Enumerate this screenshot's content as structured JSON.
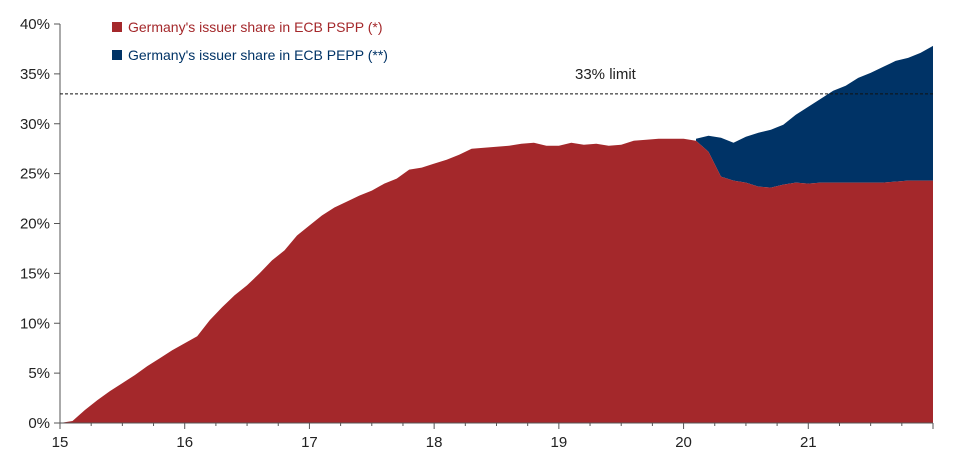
{
  "chart_data": {
    "type": "area",
    "x_ticks": [
      "15",
      "16",
      "17",
      "18",
      "19",
      "20",
      "21"
    ],
    "y_ticks": [
      "0%",
      "5%",
      "10%",
      "15%",
      "20%",
      "25%",
      "30%",
      "35%",
      "40%"
    ],
    "xlim": [
      15,
      22
    ],
    "ylim": [
      0,
      40
    ],
    "grid": false,
    "legend_position": "top-left",
    "series": [
      {
        "name": "Germany's issuer share in ECB PSPP (*)",
        "color": "#a4282b",
        "x": [
          15,
          15.1,
          15.2,
          15.3,
          15.4,
          15.5,
          15.6,
          15.7,
          15.8,
          15.9,
          16,
          16.1,
          16.2,
          16.3,
          16.4,
          16.5,
          16.6,
          16.7,
          16.8,
          16.9,
          17,
          17.1,
          17.2,
          17.3,
          17.4,
          17.5,
          17.6,
          17.7,
          17.8,
          17.9,
          18,
          18.1,
          18.2,
          18.3,
          18.4,
          18.5,
          18.6,
          18.7,
          18.8,
          18.9,
          19,
          19.1,
          19.2,
          19.3,
          19.4,
          19.5,
          19.6,
          19.7,
          19.8,
          19.9,
          20,
          20.1,
          20.2,
          20.3,
          20.4,
          20.5,
          20.6,
          20.7,
          20.8,
          20.9,
          21,
          21.1,
          21.2,
          21.3,
          21.4,
          21.5,
          21.6,
          21.7,
          21.8,
          21.9,
          22
        ],
        "values": [
          0,
          0.2,
          1.3,
          2.3,
          3.2,
          4,
          4.8,
          5.7,
          6.5,
          7.3,
          8,
          8.7,
          10.3,
          11.6,
          12.8,
          13.8,
          15,
          16.3,
          17.3,
          18.8,
          19.8,
          20.8,
          21.6,
          22.2,
          22.8,
          23.3,
          24,
          24.5,
          25.4,
          25.6,
          26,
          26.4,
          26.9,
          27.5,
          27.6,
          27.7,
          27.8,
          28,
          28.1,
          27.8,
          27.8,
          28.1,
          27.9,
          28,
          27.8,
          27.9,
          28.3,
          28.4,
          28.5,
          28.5,
          28.5,
          28.3,
          27.2,
          24.7,
          24.3,
          24.1,
          23.7,
          23.6,
          23.9,
          24.1,
          24,
          24.1,
          24.1,
          24.1,
          24.1,
          24.1,
          24.1,
          24.2,
          24.3,
          24.3,
          24.3
        ]
      },
      {
        "name": "Germany's issuer share in ECB PEPP (**)",
        "color": "#003366",
        "x": [
          20.1,
          20.2,
          20.3,
          20.4,
          20.5,
          20.6,
          20.7,
          20.8,
          20.9,
          21,
          21.1,
          21.2,
          21.3,
          21.4,
          21.5,
          21.6,
          21.7,
          21.8,
          21.9,
          22
        ],
        "values": [
          28.5,
          28.8,
          28.6,
          28.1,
          28.7,
          29.1,
          29.4,
          29.9,
          30.9,
          31.7,
          32.5,
          33.3,
          33.8,
          34.6,
          35.1,
          35.7,
          36.3,
          36.6,
          37.1,
          37.8
        ]
      }
    ],
    "annotations": [
      {
        "text": "33% limit",
        "y": 33,
        "style": "dashed"
      }
    ]
  }
}
